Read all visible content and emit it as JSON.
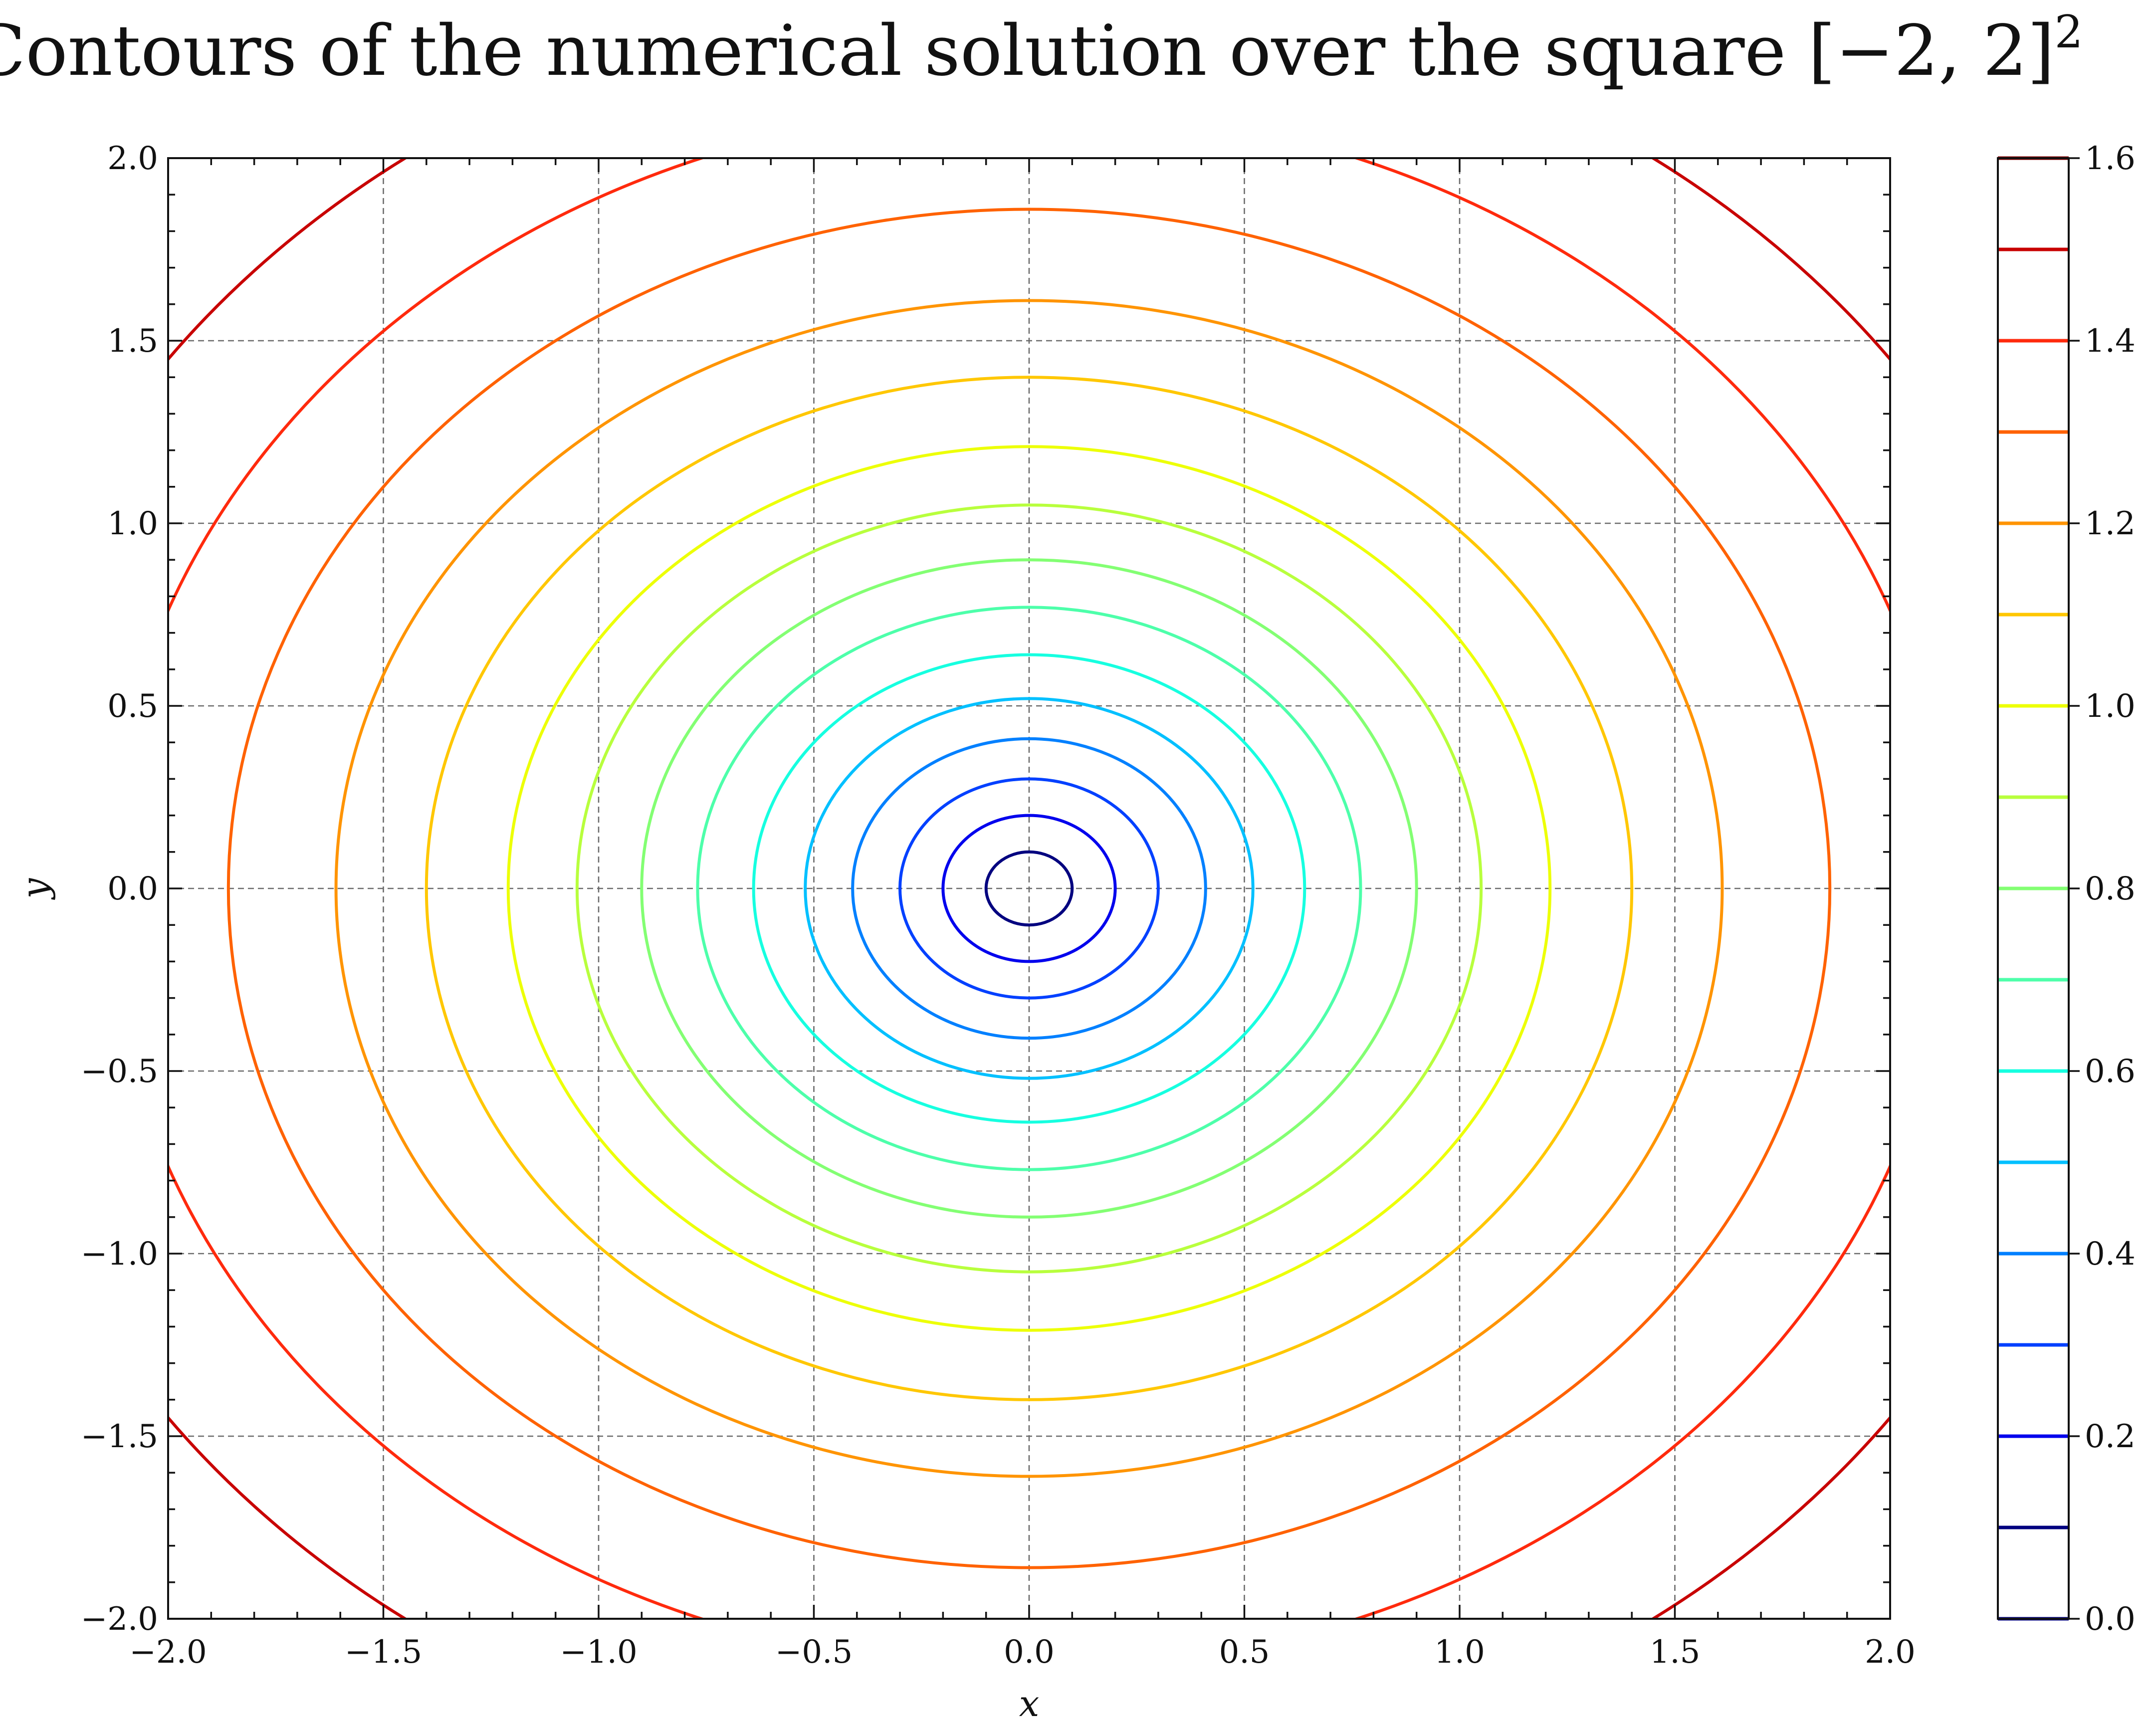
{
  "chart_data": {
    "type": "contour",
    "title": "Contours of the numerical solution over the square [−2, 2]",
    "title_superscript": "2",
    "xlabel": "x",
    "ylabel": "y",
    "xlim": [
      -2.0,
      2.0
    ],
    "ylim": [
      -2.0,
      2.0
    ],
    "xticks": [
      "−2.0",
      "−1.5",
      "−1.0",
      "−0.5",
      "0.0",
      "0.5",
      "1.0",
      "1.5",
      "2.0"
    ],
    "yticks": [
      "−2.0",
      "−1.5",
      "−1.0",
      "−0.5",
      "0.0",
      "0.5",
      "1.0",
      "1.5",
      "2.0"
    ],
    "grid": true,
    "colormap": "jet",
    "levels": [
      0.1,
      0.2,
      0.3,
      0.4,
      0.5,
      0.6,
      0.7,
      0.8,
      0.9,
      1.0,
      1.1,
      1.2,
      1.3,
      1.4,
      1.5
    ],
    "level_semi_axes": [
      {
        "level": 0.1,
        "a": 0.1,
        "b": 0.1
      },
      {
        "level": 0.2,
        "a": 0.2,
        "b": 0.2
      },
      {
        "level": 0.3,
        "a": 0.3,
        "b": 0.3
      },
      {
        "level": 0.4,
        "a": 0.41,
        "b": 0.41
      },
      {
        "level": 0.5,
        "a": 0.52,
        "b": 0.52
      },
      {
        "level": 0.6,
        "a": 0.64,
        "b": 0.64
      },
      {
        "level": 0.7,
        "a": 0.77,
        "b": 0.77
      },
      {
        "level": 0.8,
        "a": 0.9,
        "b": 0.9
      },
      {
        "level": 0.9,
        "a": 1.05,
        "b": 1.05
      },
      {
        "level": 1.0,
        "a": 1.21,
        "b": 1.21
      },
      {
        "level": 1.1,
        "a": 1.4,
        "b": 1.4
      },
      {
        "level": 1.2,
        "a": 1.61,
        "b": 1.61
      },
      {
        "level": 1.3,
        "a": 1.86,
        "b": 1.86
      },
      {
        "level": 1.4,
        "a": 2.14,
        "b": 2.14
      },
      {
        "level": 1.5,
        "a": 2.47,
        "b": 2.47
      }
    ],
    "level_colors": {
      "0.0": "#00007f",
      "0.1": "#00007f",
      "0.2": "#0000ed",
      "0.3": "#0040ff",
      "0.4": "#0080ff",
      "0.5": "#00c0ff",
      "0.6": "#16ffe0",
      "0.7": "#4dffaa",
      "0.8": "#83ff73",
      "0.9": "#b8ff3d",
      "1.0": "#edff07",
      "1.1": "#ffc700",
      "1.2": "#ff9400",
      "1.3": "#ff6200",
      "1.4": "#ff2a0d",
      "1.5": "#c80000",
      "1.6": "#7f0000"
    },
    "colorbar": {
      "range": [
        0.0,
        1.6
      ],
      "levels": [
        0.0,
        0.1,
        0.2,
        0.3,
        0.4,
        0.5,
        0.6,
        0.7,
        0.8,
        0.9,
        1.0,
        1.1,
        1.2,
        1.3,
        1.4,
        1.5,
        1.6
      ],
      "tick_labels": [
        "0.0",
        "0.2",
        "0.4",
        "0.6",
        "0.8",
        "1.0",
        "1.2",
        "1.4",
        "1.6"
      ],
      "tick_values": [
        0.0,
        0.2,
        0.4,
        0.6,
        0.8,
        1.0,
        1.2,
        1.4,
        1.6
      ]
    }
  }
}
